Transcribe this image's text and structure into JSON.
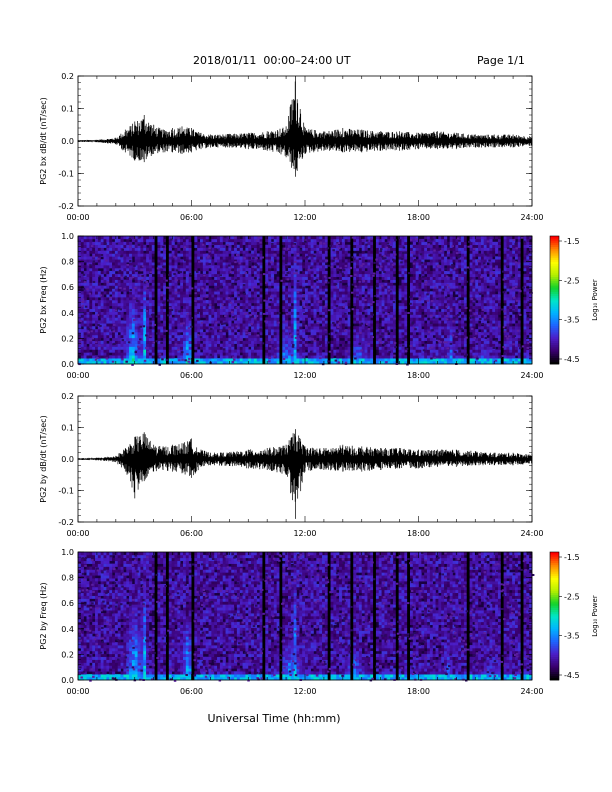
{
  "header": {
    "title": "2018/01/11  00:00–24:00 UT",
    "page": "Page 1/1"
  },
  "xlabel": "Universal Time (hh:mm)",
  "colorbar": {
    "label": "Log₁₀ Power",
    "ticks": [
      "-1.5",
      "-2.5",
      "-3.5",
      "-4.5"
    ],
    "colors": [
      "#000000",
      "#3a0070",
      "#4b1ec8",
      "#1e64ff",
      "#00b4ff",
      "#00e6c8",
      "#14d228",
      "#b4f000",
      "#ffff00",
      "#ff8c00",
      "#ff0000"
    ]
  },
  "chart_data": [
    {
      "type": "line",
      "ylabel": "PG2 bx dB/dt (nT/sec)",
      "xlim": [
        0,
        24
      ],
      "ylim": [
        -0.2,
        0.2
      ],
      "x_ticks": [
        "00:00",
        "06:00",
        "12:00",
        "18:00",
        "24:00"
      ],
      "y_ticks": [
        "-0.2",
        "-0.1",
        "0.0",
        "0.1",
        "0.2"
      ],
      "x": [
        0,
        1,
        2,
        2.5,
        3,
        3.5,
        4,
        4.5,
        5,
        5.5,
        6,
        6.5,
        7,
        8,
        9,
        10,
        11,
        11.5,
        12,
        13,
        14,
        15,
        16,
        17,
        18,
        19,
        20,
        21,
        22,
        23,
        24
      ],
      "y_max": [
        0.003,
        0.004,
        0.01,
        0.035,
        0.06,
        0.08,
        0.05,
        0.035,
        0.04,
        0.045,
        0.04,
        0.025,
        0.02,
        0.022,
        0.025,
        0.03,
        0.045,
        0.2,
        0.04,
        0.03,
        0.04,
        0.035,
        0.03,
        0.03,
        0.025,
        0.03,
        0.025,
        0.02,
        0.02,
        0.02,
        0.015
      ],
      "y_min": [
        -0.003,
        -0.004,
        -0.01,
        -0.035,
        -0.06,
        -0.065,
        -0.04,
        -0.035,
        -0.035,
        -0.04,
        -0.035,
        -0.025,
        -0.02,
        -0.02,
        -0.025,
        -0.03,
        -0.05,
        -0.11,
        -0.04,
        -0.03,
        -0.035,
        -0.035,
        -0.03,
        -0.03,
        -0.025,
        -0.025,
        -0.025,
        -0.02,
        -0.02,
        -0.02,
        -0.015
      ]
    },
    {
      "type": "heatmap",
      "ylabel": "PG2 bx Freq (Hz)",
      "xlim": [
        0,
        24
      ],
      "ylim": [
        0,
        1.0
      ],
      "x_ticks": [
        "00:00",
        "06:00",
        "12:00",
        "18:00",
        "24:00"
      ],
      "y_ticks": [
        "0.0",
        "0.2",
        "0.4",
        "0.6",
        "0.8",
        "1.0"
      ],
      "zlim": [
        -4.5,
        -1.5
      ],
      "bursts": [
        {
          "t": 2.9,
          "width": 0.7,
          "peak": -2.7,
          "fmax": 0.55
        },
        {
          "t": 3.5,
          "width": 0.25,
          "peak": -2.6,
          "fmax": 0.8
        },
        {
          "t": 5.8,
          "width": 0.5,
          "peak": -2.8,
          "fmax": 0.5
        },
        {
          "t": 11.5,
          "width": 0.15,
          "peak": -2.5,
          "fmax": 0.95
        },
        {
          "t": 11.0,
          "width": 1.2,
          "peak": -3.0,
          "fmax": 0.35
        },
        {
          "t": 14.8,
          "width": 0.8,
          "peak": -3.1,
          "fmax": 0.3
        },
        {
          "t": 19.7,
          "width": 0.3,
          "peak": -3.2,
          "fmax": 0.55
        },
        {
          "t": 21.5,
          "width": 1.0,
          "peak": -3.3,
          "fmax": 0.2
        }
      ],
      "gaps": [
        0.9,
        2.7,
        4.1,
        4.7,
        5.4,
        6.1,
        8.7,
        9.8,
        10.7,
        13.3,
        14.5,
        15.0,
        15.7,
        16.9,
        17.5,
        19.8,
        20.6,
        22.4,
        23.5
      ]
    },
    {
      "type": "line",
      "ylabel": "PG2 by dB/dt (nT/sec)",
      "xlim": [
        0,
        24
      ],
      "ylim": [
        -0.2,
        0.2
      ],
      "x_ticks": [
        "00:00",
        "06:00",
        "12:00",
        "18:00",
        "24:00"
      ],
      "y_ticks": [
        "-0.2",
        "-0.1",
        "0.0",
        "0.1",
        "0.2"
      ],
      "x": [
        0,
        1,
        2,
        2.5,
        3,
        3.5,
        4,
        4.5,
        5,
        5.5,
        6,
        6.5,
        7,
        8,
        9,
        10,
        11,
        11.5,
        12,
        13,
        14,
        15,
        16,
        17,
        18,
        19,
        20,
        21,
        22,
        23,
        24
      ],
      "y_max": [
        0.003,
        0.004,
        0.01,
        0.035,
        0.07,
        0.085,
        0.045,
        0.04,
        0.045,
        0.05,
        0.065,
        0.03,
        0.02,
        0.022,
        0.03,
        0.035,
        0.045,
        0.095,
        0.04,
        0.035,
        0.045,
        0.04,
        0.035,
        0.035,
        0.03,
        0.03,
        0.03,
        0.025,
        0.02,
        0.02,
        0.015
      ],
      "y_min": [
        -0.003,
        -0.004,
        -0.01,
        -0.04,
        -0.125,
        -0.07,
        -0.04,
        -0.035,
        -0.04,
        -0.045,
        -0.06,
        -0.025,
        -0.02,
        -0.022,
        -0.03,
        -0.035,
        -0.05,
        -0.19,
        -0.04,
        -0.035,
        -0.04,
        -0.04,
        -0.035,
        -0.03,
        -0.03,
        -0.025,
        -0.025,
        -0.02,
        -0.02,
        -0.02,
        -0.015
      ]
    },
    {
      "type": "heatmap",
      "ylabel": "PG2 by Freq (Hz)",
      "xlim": [
        0,
        24
      ],
      "ylim": [
        0,
        1.0
      ],
      "x_ticks": [
        "00:00",
        "06:00",
        "12:00",
        "18:00",
        "24:00"
      ],
      "y_ticks": [
        "0.0",
        "0.2",
        "0.4",
        "0.6",
        "0.8",
        "1.0"
      ],
      "zlim": [
        -4.5,
        -1.5
      ],
      "bursts": [
        {
          "t": 3.0,
          "width": 0.8,
          "peak": -2.7,
          "fmax": 0.6
        },
        {
          "t": 3.5,
          "width": 0.25,
          "peak": -2.6,
          "fmax": 0.8
        },
        {
          "t": 5.8,
          "width": 0.5,
          "peak": -2.7,
          "fmax": 0.5
        },
        {
          "t": 11.5,
          "width": 0.15,
          "peak": -2.6,
          "fmax": 0.9
        },
        {
          "t": 11.2,
          "width": 1.3,
          "peak": -3.0,
          "fmax": 0.35
        },
        {
          "t": 14.6,
          "width": 0.9,
          "peak": -3.0,
          "fmax": 0.3
        },
        {
          "t": 19.6,
          "width": 0.4,
          "peak": -3.3,
          "fmax": 0.45
        },
        {
          "t": 21.8,
          "width": 1.2,
          "peak": -3.3,
          "fmax": 0.2
        }
      ],
      "gaps": [
        0.9,
        2.7,
        4.1,
        4.7,
        5.4,
        6.1,
        8.7,
        9.8,
        10.7,
        13.3,
        14.5,
        15.0,
        15.7,
        16.9,
        17.5,
        19.8,
        20.6,
        22.4,
        23.5
      ]
    }
  ]
}
